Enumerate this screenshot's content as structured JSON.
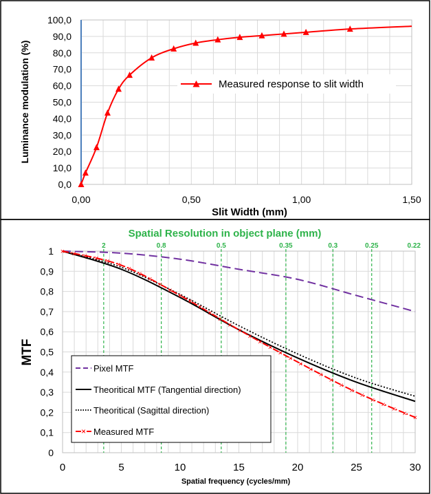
{
  "chart_data": [
    {
      "type": "line",
      "title": "",
      "xlabel": "Slit Width (mm)",
      "ylabel": "Luminance modulation (%)",
      "xlim": [
        0,
        1.5
      ],
      "ylim": [
        0,
        100
      ],
      "x_ticks": [
        "0,00",
        "0,50",
        "1,00",
        "1,50"
      ],
      "y_ticks": [
        "0,0",
        "10,0",
        "20,0",
        "30,0",
        "40,0",
        "50,0",
        "60,0",
        "70,0",
        "80,0",
        "90,0",
        "100,0"
      ],
      "grid": true,
      "legend_position": "middle-right",
      "series": [
        {
          "name": "Measured response to slit width",
          "color": "#ff0000",
          "marker": "triangle",
          "x": [
            0.0,
            0.02,
            0.07,
            0.12,
            0.17,
            0.22,
            0.32,
            0.42,
            0.52,
            0.62,
            0.72,
            0.82,
            0.92,
            1.02,
            1.22
          ],
          "y": [
            0.0,
            7.0,
            22.5,
            43.5,
            58.0,
            66.5,
            77.0,
            82.5,
            86.0,
            88.0,
            89.5,
            90.5,
            91.5,
            92.5,
            94.5
          ]
        }
      ],
      "curve_end": {
        "x": 1.5,
        "y": 96.2
      },
      "vertical_line": {
        "x": 0.0,
        "color": "#4a7ebb"
      }
    },
    {
      "type": "line",
      "title": "Spatial Resolution in object plane (mm)",
      "xlabel": "Spatial frequency  (cycles/mm)",
      "ylabel": "MTF",
      "xlim": [
        0,
        30
      ],
      "ylim": [
        0,
        1
      ],
      "x_ticks": [
        "0",
        "5",
        "10",
        "15",
        "20",
        "25",
        "30"
      ],
      "y_ticks": [
        "0",
        "0,1",
        "0,2",
        "0,3",
        "0,4",
        "0,5",
        "0,6",
        "0,7",
        "0,8",
        "0,9",
        "1"
      ],
      "grid": true,
      "legend_position": "bottom-left",
      "resolution_markers": [
        {
          "label": "2",
          "x": 3.5
        },
        {
          "label": "0.8",
          "x": 8.4
        },
        {
          "label": "0.5",
          "x": 13.5
        },
        {
          "label": "0.35",
          "x": 19.0
        },
        {
          "label": "0.3",
          "x": 23.0
        },
        {
          "label": "0.25",
          "x": 26.3
        },
        {
          "label": "0.22",
          "x": 30.0
        }
      ],
      "series": [
        {
          "name": "Pixel MTF",
          "color": "#7030a0",
          "style": "dashed",
          "x": [
            0,
            5,
            10,
            15,
            20,
            25,
            30
          ],
          "y": [
            1.0,
            0.99,
            0.96,
            0.91,
            0.86,
            0.78,
            0.7
          ]
        },
        {
          "name": "Theoritical MTF (Tangential direction)",
          "color": "#000000",
          "style": "solid",
          "x": [
            0,
            5,
            10,
            15,
            20,
            25,
            30
          ],
          "y": [
            1.0,
            0.91,
            0.77,
            0.61,
            0.47,
            0.35,
            0.255
          ]
        },
        {
          "name": "Theoritical (Sagittal direction)",
          "color": "#000000",
          "style": "dotted",
          "x": [
            0,
            5,
            10,
            15,
            20,
            25,
            30
          ],
          "y": [
            1.0,
            0.92,
            0.785,
            0.63,
            0.49,
            0.37,
            0.28
          ]
        },
        {
          "name": "Measured MTF",
          "color": "#ff0000",
          "style": "dashdot",
          "marker": "x",
          "x": [
            0,
            5,
            10,
            15,
            20,
            25,
            30
          ],
          "y": [
            1.0,
            0.93,
            0.78,
            0.61,
            0.45,
            0.3,
            0.175
          ]
        }
      ]
    }
  ]
}
